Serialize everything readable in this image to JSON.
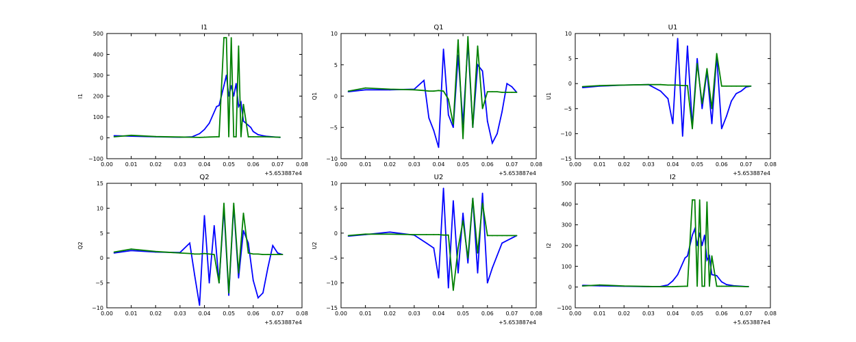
{
  "chart_data": [
    {
      "type": "line",
      "title": "I1",
      "ylabel": "I1",
      "xlabel": "",
      "xlim": [
        0.0,
        0.08
      ],
      "ylim": [
        -100,
        500
      ],
      "xticks": [
        "0.00",
        "0.01",
        "0.02",
        "0.03",
        "0.04",
        "0.05",
        "0.06",
        "0.07",
        "0.08"
      ],
      "yticks": [
        "−100",
        "0",
        "100",
        "200",
        "300",
        "400",
        "500"
      ],
      "x_offset": "+5.653887e4",
      "x": [
        0.003,
        0.01,
        0.02,
        0.03,
        0.035,
        0.038,
        0.04,
        0.042,
        0.045,
        0.046,
        0.048,
        0.049,
        0.05,
        0.051,
        0.052,
        0.053,
        0.054,
        0.055,
        0.056,
        0.058,
        0.059,
        0.06,
        0.062,
        0.065,
        0.071
      ],
      "series": [
        {
          "color": "#0000ff",
          "values": [
            10,
            8,
            5,
            3,
            5,
            20,
            40,
            70,
            150,
            155,
            250,
            300,
            200,
            250,
            200,
            260,
            150,
            170,
            80,
            60,
            50,
            30,
            15,
            8,
            2
          ]
        },
        {
          "color": "#008000",
          "values": [
            5,
            12,
            6,
            4,
            3,
            2,
            3,
            4,
            5,
            5,
            480,
            480,
            5,
            480,
            5,
            5,
            440,
            5,
            160,
            5,
            5,
            5,
            5,
            5,
            3
          ]
        }
      ]
    },
    {
      "type": "line",
      "title": "Q1",
      "ylabel": "Q1",
      "xlabel": "",
      "xlim": [
        0.0,
        0.08
      ],
      "ylim": [
        -10,
        10
      ],
      "xticks": [
        "0.00",
        "0.01",
        "0.02",
        "0.03",
        "0.04",
        "0.05",
        "0.06",
        "0.07",
        "0.08"
      ],
      "yticks": [
        "−10",
        "−5",
        "0",
        "5",
        "10"
      ],
      "x_offset": "+5.653887e4",
      "x": [
        0.003,
        0.01,
        0.02,
        0.03,
        0.034,
        0.036,
        0.038,
        0.04,
        0.042,
        0.044,
        0.046,
        0.048,
        0.05,
        0.052,
        0.054,
        0.056,
        0.058,
        0.06,
        0.062,
        0.064,
        0.066,
        0.068,
        0.07,
        0.072
      ],
      "series": [
        {
          "color": "#0000ff",
          "values": [
            0.7,
            1.0,
            1.0,
            1.1,
            2.5,
            -3.5,
            -5.5,
            -8.2,
            7.5,
            -3.0,
            -5.0,
            6.5,
            -4.5,
            8.5,
            -5.0,
            5.0,
            4.0,
            -4.0,
            -7.5,
            -6.0,
            -2.5,
            2.0,
            1.5,
            0.6
          ]
        },
        {
          "color": "#008000",
          "values": [
            0.8,
            1.3,
            1.1,
            1.0,
            0.9,
            0.8,
            0.8,
            0.9,
            0.8,
            -0.5,
            -4.5,
            9.0,
            -6.8,
            9.5,
            -5.0,
            8.0,
            -2.0,
            0.7,
            0.7,
            0.7,
            0.6,
            0.6,
            0.6,
            0.6
          ]
        }
      ]
    },
    {
      "type": "line",
      "title": "U1",
      "ylabel": "U1",
      "xlabel": "",
      "xlim": [
        0.0,
        0.08
      ],
      "ylim": [
        -15,
        10
      ],
      "xticks": [
        "0.00",
        "0.01",
        "0.02",
        "0.03",
        "0.04",
        "0.05",
        "0.06",
        "0.07",
        "0.08"
      ],
      "yticks": [
        "−15",
        "−10",
        "−5",
        "0",
        "5",
        "10"
      ],
      "x_offset": "+5.653887e4",
      "x": [
        0.003,
        0.01,
        0.02,
        0.03,
        0.035,
        0.038,
        0.04,
        0.042,
        0.044,
        0.046,
        0.048,
        0.05,
        0.052,
        0.054,
        0.056,
        0.058,
        0.06,
        0.062,
        0.064,
        0.066,
        0.068,
        0.07,
        0.072
      ],
      "series": [
        {
          "color": "#0000ff",
          "values": [
            -0.8,
            -0.5,
            -0.3,
            -0.2,
            -1.5,
            -3.0,
            -8.0,
            9.0,
            -10.5,
            7.5,
            -8.5,
            5.0,
            -5.0,
            2.5,
            -8.0,
            5.5,
            -9.0,
            -6.5,
            -3.5,
            -2.0,
            -1.5,
            -0.7,
            -0.5
          ]
        },
        {
          "color": "#008000",
          "values": [
            -0.6,
            -0.4,
            -0.3,
            -0.2,
            -0.2,
            -0.3,
            -0.3,
            -0.3,
            -0.4,
            -0.4,
            -9.0,
            4.0,
            -4.0,
            3.0,
            -5.0,
            6.0,
            -0.5,
            -0.5,
            -0.5,
            -0.5,
            -0.5,
            -0.5,
            -0.5
          ]
        }
      ]
    },
    {
      "type": "line",
      "title": "Q2",
      "ylabel": "Q2",
      "xlabel": "",
      "xlim": [
        0.0,
        0.08
      ],
      "ylim": [
        -10,
        15
      ],
      "xticks": [
        "0.00",
        "0.01",
        "0.02",
        "0.03",
        "0.04",
        "0.05",
        "0.06",
        "0.07",
        "0.08"
      ],
      "yticks": [
        "−10",
        "−5",
        "0",
        "5",
        "10",
        "15"
      ],
      "x_offset": "+5.653887e4",
      "x": [
        0.003,
        0.01,
        0.02,
        0.03,
        0.034,
        0.036,
        0.038,
        0.04,
        0.042,
        0.044,
        0.046,
        0.048,
        0.05,
        0.052,
        0.054,
        0.056,
        0.058,
        0.06,
        0.062,
        0.064,
        0.066,
        0.068,
        0.07,
        0.072
      ],
      "series": [
        {
          "color": "#0000ff",
          "values": [
            1.0,
            1.5,
            1.2,
            1.1,
            3.0,
            -3.5,
            -9.5,
            8.5,
            -5.0,
            6.5,
            -5.0,
            10.0,
            -7.5,
            10.5,
            -4.0,
            5.5,
            3.0,
            -4.5,
            -8.0,
            -7.0,
            -2.0,
            2.5,
            1.0,
            0.7
          ]
        },
        {
          "color": "#008000",
          "values": [
            1.2,
            1.8,
            1.3,
            1.0,
            0.9,
            0.8,
            0.8,
            0.9,
            0.8,
            0.7,
            -5.0,
            11.0,
            -7.0,
            11.0,
            -3.0,
            9.0,
            1.0,
            0.8,
            0.8,
            0.7,
            0.7,
            0.7,
            0.7,
            0.7
          ]
        }
      ]
    },
    {
      "type": "line",
      "title": "U2",
      "ylabel": "U2",
      "xlabel": "",
      "xlim": [
        0.0,
        0.08
      ],
      "ylim": [
        -15,
        10
      ],
      "xticks": [
        "0.00",
        "0.01",
        "0.02",
        "0.03",
        "0.04",
        "0.05",
        "0.06",
        "0.07",
        "0.08"
      ],
      "yticks": [
        "−15",
        "−10",
        "−5",
        "0",
        "5",
        "10"
      ],
      "x_offset": "+5.653887e4",
      "x": [
        0.003,
        0.01,
        0.02,
        0.03,
        0.035,
        0.038,
        0.04,
        0.042,
        0.044,
        0.046,
        0.048,
        0.05,
        0.052,
        0.054,
        0.056,
        0.058,
        0.06,
        0.062,
        0.064,
        0.066,
        0.068,
        0.07,
        0.072
      ],
      "series": [
        {
          "color": "#0000ff",
          "values": [
            -0.6,
            -0.3,
            0.2,
            -0.4,
            -2.0,
            -3.0,
            -9.0,
            9.0,
            -11.0,
            6.5,
            -8.0,
            4.0,
            -6.0,
            7.0,
            -8.0,
            8.0,
            -10.0,
            -7.0,
            -4.5,
            -2.0,
            -1.5,
            -1.0,
            -0.5
          ]
        },
        {
          "color": "#008000",
          "values": [
            -0.5,
            -0.2,
            -0.2,
            -0.3,
            -0.3,
            -0.3,
            -0.3,
            -0.4,
            -0.4,
            -11.5,
            -3.0,
            2.5,
            -5.0,
            7.0,
            -4.0,
            6.0,
            -0.5,
            -0.5,
            -0.5,
            -0.5,
            -0.5,
            -0.5,
            -0.5
          ]
        }
      ]
    },
    {
      "type": "line",
      "title": "I2",
      "ylabel": "I2",
      "xlabel": "",
      "xlim": [
        0.0,
        0.08
      ],
      "ylim": [
        -100,
        500
      ],
      "xticks": [
        "0.00",
        "0.01",
        "0.02",
        "0.03",
        "0.04",
        "0.05",
        "0.06",
        "0.07",
        "0.08"
      ],
      "yticks": [
        "−100",
        "0",
        "100",
        "200",
        "300",
        "400",
        "500"
      ],
      "x_offset": "+5.653887e4",
      "x": [
        0.003,
        0.01,
        0.02,
        0.03,
        0.035,
        0.038,
        0.04,
        0.042,
        0.045,
        0.046,
        0.048,
        0.049,
        0.05,
        0.051,
        0.052,
        0.053,
        0.054,
        0.055,
        0.056,
        0.058,
        0.059,
        0.06,
        0.062,
        0.065,
        0.071
      ],
      "series": [
        {
          "color": "#0000ff",
          "values": [
            8,
            6,
            4,
            2,
            3,
            10,
            30,
            60,
            140,
            150,
            250,
            280,
            200,
            260,
            200,
            250,
            130,
            150,
            60,
            55,
            40,
            25,
            12,
            6,
            2
          ]
        },
        {
          "color": "#008000",
          "values": [
            5,
            10,
            5,
            3,
            2,
            2,
            2,
            3,
            4,
            4,
            420,
            420,
            4,
            420,
            4,
            4,
            410,
            4,
            150,
            4,
            4,
            4,
            4,
            4,
            2
          ]
        }
      ]
    }
  ]
}
